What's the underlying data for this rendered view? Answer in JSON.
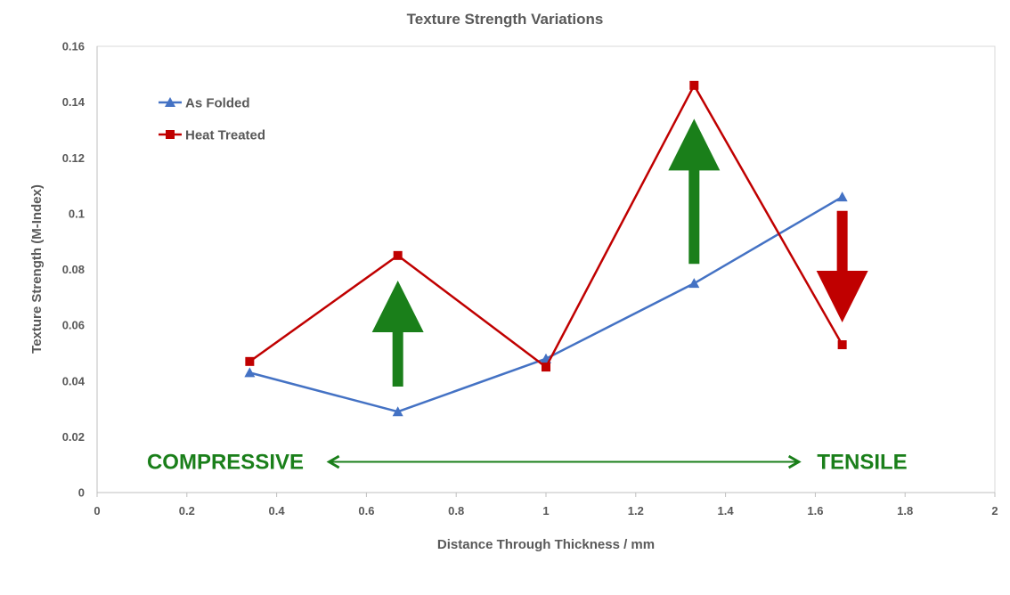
{
  "chart_data": {
    "type": "line",
    "title": "Texture Strength Variations",
    "xlabel": "Distance Through Thickness / mm",
    "ylabel": "Texture Strength (M-Index)",
    "xlim": [
      0,
      2
    ],
    "ylim": [
      0,
      0.16
    ],
    "x_ticks": [
      0,
      0.2,
      0.4,
      0.6,
      0.8,
      1,
      1.2,
      1.4,
      1.6,
      1.8,
      2
    ],
    "x_tick_labels": [
      "0",
      "0.2",
      "0.4",
      "0.6",
      "0.8",
      "1",
      "1.2",
      "1.4",
      "1.6",
      "1.8",
      "2"
    ],
    "y_ticks": [
      0,
      0.02,
      0.04,
      0.06,
      0.08,
      0.1,
      0.12,
      0.14,
      0.16
    ],
    "y_tick_labels": [
      "0",
      "0.02",
      "0.04",
      "0.06",
      "0.08",
      "0.1",
      "0.12",
      "0.14",
      "0.16"
    ],
    "grid": false,
    "legend_position": "top-left",
    "x": [
      0.34,
      0.67,
      1.0,
      1.33,
      1.66
    ],
    "series": [
      {
        "name": "As Folded",
        "values": [
          0.043,
          0.029,
          0.048,
          0.075,
          0.106
        ],
        "color": "#4472C4",
        "marker": "triangle"
      },
      {
        "name": "Heat Treated",
        "values": [
          0.047,
          0.085,
          0.045,
          0.146,
          0.053
        ],
        "color": "#C00000",
        "marker": "square"
      }
    ],
    "annotations": {
      "left_label": "COMPRESSIVE",
      "right_label": "TENSILE",
      "label_color": "#1A7F1A",
      "double_arrow_color": "#1A7F1A",
      "arrows": [
        {
          "direction": "up",
          "color": "#1A7F1A",
          "x": 0.67,
          "from": 0.038,
          "to": 0.076
        },
        {
          "direction": "up",
          "color": "#1A7F1A",
          "x": 1.33,
          "from": 0.082,
          "to": 0.134
        },
        {
          "direction": "down",
          "color": "#C00000",
          "x": 1.66,
          "from": 0.101,
          "to": 0.061
        }
      ],
      "double_arrow": {
        "y": 0.011,
        "x_from": 0.52,
        "x_to": 1.56
      }
    }
  }
}
